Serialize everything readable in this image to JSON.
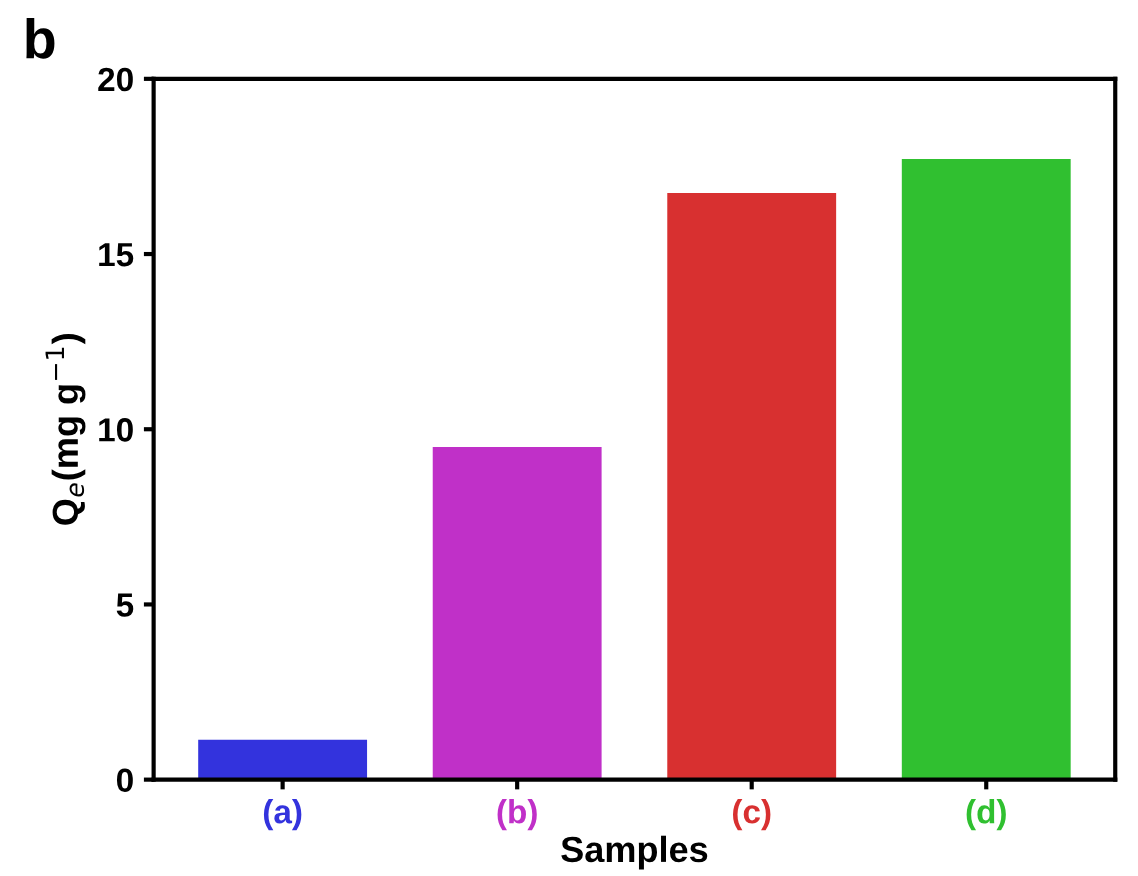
{
  "chart_data": {
    "type": "bar",
    "title": "b",
    "xlabel": "Samples",
    "ylabel": "Q$_{e}$(mg g$^{−1}$)",
    "categories": [
      "(a)",
      "(b)",
      "(c)",
      "(d)"
    ],
    "values": [
      1.14,
      9.49,
      16.74,
      17.71
    ],
    "colors": [
      "#3333dd",
      "#c030c8",
      "#d83030",
      "#30c030"
    ],
    "ylim": [
      0,
      20
    ],
    "yticks": [
      0,
      5,
      10,
      15,
      20
    ],
    "grid": false
  }
}
